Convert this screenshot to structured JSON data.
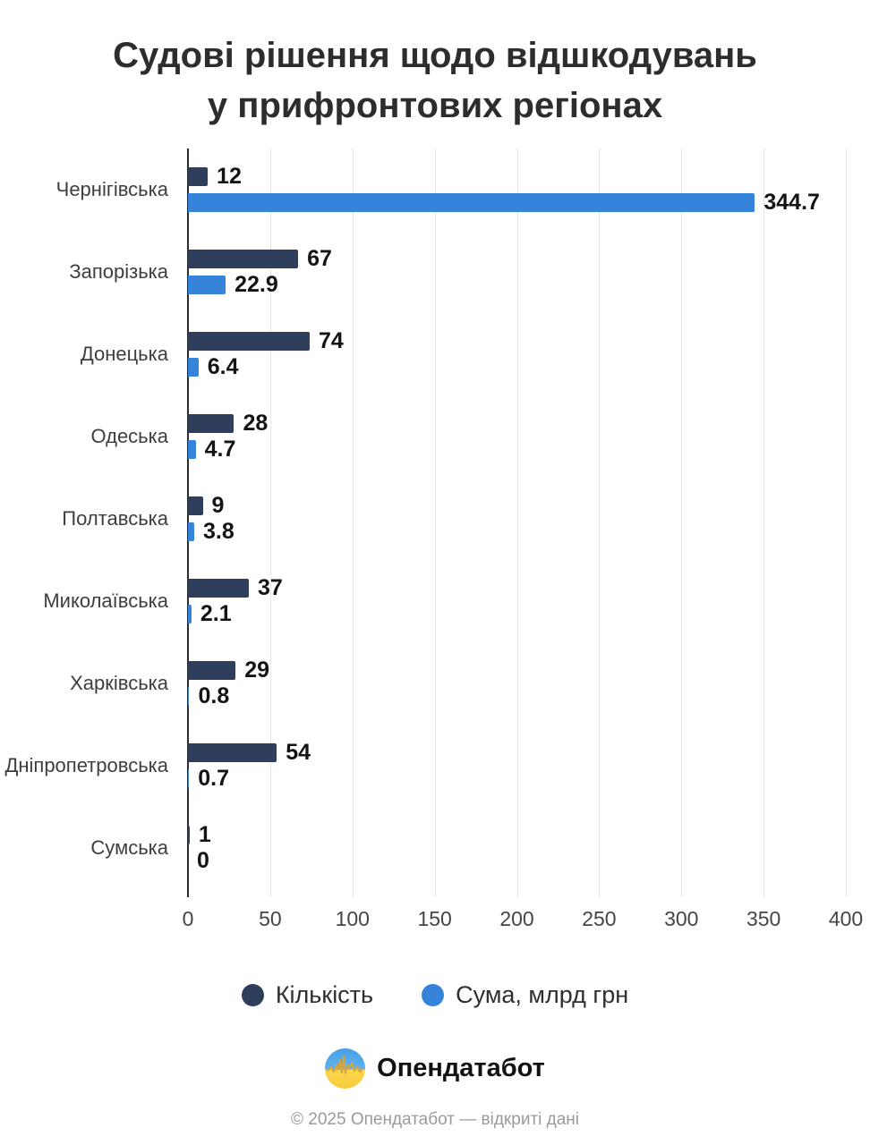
{
  "page": {
    "title_line1": "Судові рішення щодо відшкодувань",
    "title_line2": "у прифронтових регіонах"
  },
  "chart_data": {
    "type": "bar",
    "orientation": "horizontal",
    "title": "Судові рішення щодо відшкодувань у прифронтових регіонах",
    "categories": [
      "Чернігівська",
      "Запорізька",
      "Донецька",
      "Одеська",
      "Полтавська",
      "Миколаївська",
      "Харківська",
      "Дніпропетровська",
      "Сумська"
    ],
    "series": [
      {
        "name": "Кількість",
        "color": "#2e3e5b",
        "values": [
          12,
          67,
          74,
          28,
          9,
          37,
          29,
          54,
          1
        ]
      },
      {
        "name": "Сума, млрд грн",
        "color": "#3584da",
        "values": [
          344.7,
          22.9,
          6.4,
          4.7,
          3.8,
          2.1,
          0.8,
          0.7,
          0
        ]
      }
    ],
    "xlim": [
      0,
      400
    ],
    "xticks": [
      0,
      50,
      100,
      150,
      200,
      250,
      300,
      350,
      400
    ],
    "grid": "vertical-light",
    "legend_position": "bottom"
  },
  "branding": {
    "logo_icon": "opendatabot-pulse-icon",
    "logo_text": "Опендатабот",
    "copyright": "© 2025 Опендатабот — відкриті дані"
  },
  "colors": {
    "count_bar": "#2e3e5b",
    "sum_bar": "#3584da",
    "gridline": "#e5e5e5",
    "axis_line": "#2d2d2d",
    "title_text": "#2d2d2d",
    "category_text": "#3e3e3e",
    "value_text": "#141414",
    "copyright_text": "#9a9a9a",
    "logo_blue": "#4aa0e6",
    "logo_yellow": "#fdd64a"
  }
}
